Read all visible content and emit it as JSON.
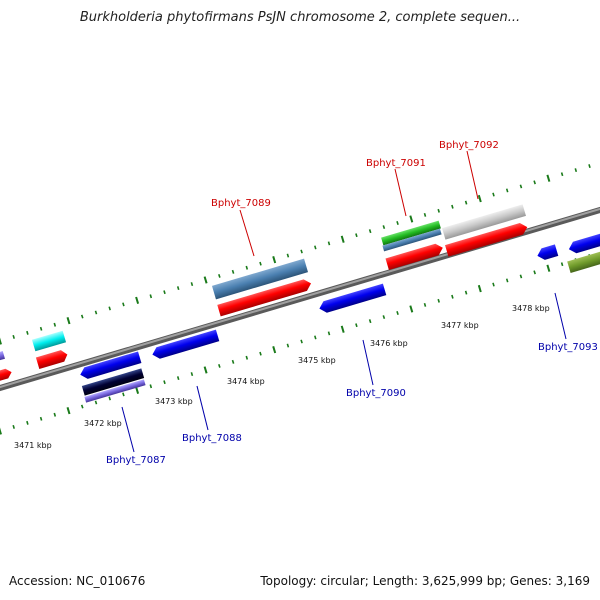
{
  "title": "Burkholderia phytofirmans PsJN chromosome 2, complete sequen...",
  "footer": {
    "accession": "Accession: NC_010676",
    "summary": "Topology: circular; Length: 3,625,999 bp; Genes: 3,169"
  },
  "colors": {
    "backbone": "#808080",
    "ticks": "#1a7a1a",
    "forward_label": "#cc0000",
    "reverse_label": "#0000aa"
  },
  "scale_labels": [
    "3471 kbp",
    "3472 kbp",
    "3473 kbp",
    "3474 kbp",
    "3475 kbp",
    "3476 kbp",
    "3477 kbp",
    "3478 kbp"
  ],
  "gene_labels": [
    {
      "name": "Bphyt_7087",
      "strand": "reverse"
    },
    {
      "name": "Bphyt_7088",
      "strand": "reverse"
    },
    {
      "name": "Bphyt_7089",
      "strand": "forward"
    },
    {
      "name": "Bphyt_7090",
      "strand": "reverse"
    },
    {
      "name": "Bphyt_7091",
      "strand": "forward"
    },
    {
      "name": "Bphyt_7092",
      "strand": "forward"
    },
    {
      "name": "Bphyt_7093",
      "strand": "reverse"
    }
  ]
}
